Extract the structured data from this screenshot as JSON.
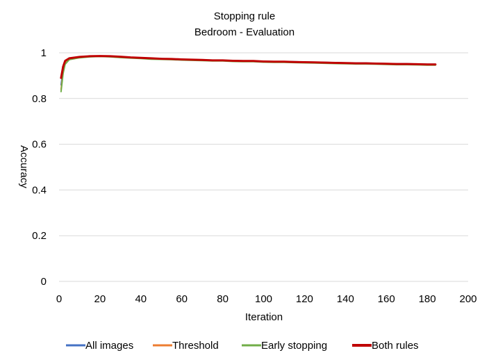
{
  "chart_data": {
    "type": "line",
    "title": "Stopping rule",
    "subtitle": "Bedroom - Evaluation",
    "xlabel": "Iteration",
    "ylabel": "Accuracy",
    "xlim": [
      0,
      200
    ],
    "ylim": [
      0,
      1
    ],
    "x_ticks": [
      "0",
      "20",
      "40",
      "60",
      "80",
      "100",
      "120",
      "140",
      "160",
      "180",
      "200"
    ],
    "y_ticks": [
      "0",
      "0.2",
      "0.4",
      "0.6",
      "0.8",
      "1"
    ],
    "grid": true,
    "legend_position": "bottom",
    "x": [
      1,
      2,
      3,
      5,
      10,
      15,
      20,
      25,
      30,
      35,
      40,
      45,
      50,
      55,
      60,
      65,
      70,
      75,
      80,
      85,
      90,
      95,
      100,
      105,
      110,
      115,
      120,
      125,
      130,
      135,
      140,
      145,
      150,
      155,
      160,
      165,
      170,
      175,
      180,
      184
    ],
    "series": [
      {
        "name": "All images",
        "color": "#4472C4",
        "values": [
          0.86,
          0.93,
          0.96,
          0.975,
          0.982,
          0.984,
          0.985,
          0.984,
          0.982,
          0.98,
          0.978,
          0.976,
          0.975,
          0.973,
          0.972,
          0.97,
          0.969,
          0.968,
          0.967,
          0.966,
          0.965,
          0.964,
          0.963,
          0.962,
          0.962,
          0.961,
          0.96,
          0.959,
          0.958,
          0.957,
          0.956,
          0.955,
          0.955,
          0.954,
          0.953,
          0.952,
          0.952,
          0.951,
          0.95,
          0.95
        ]
      },
      {
        "name": "Threshold",
        "color": "#ED7D31",
        "values": [
          0.84,
          0.92,
          0.955,
          0.972,
          0.98,
          0.983,
          0.985,
          0.983,
          0.98,
          0.979,
          0.977,
          0.975,
          0.973,
          0.972,
          0.97,
          0.969,
          0.968,
          0.966,
          0.966,
          0.964,
          0.963,
          0.963,
          0.961,
          0.96,
          0.96,
          0.959,
          0.958,
          0.957,
          0.956,
          0.955,
          0.954,
          0.953,
          0.953,
          0.952,
          0.951,
          0.95,
          0.95,
          0.949,
          0.948,
          0.947
        ]
      },
      {
        "name": "Early stopping",
        "color": "#70AD47",
        "values": [
          0.83,
          0.91,
          0.95,
          0.97,
          0.978,
          0.982,
          0.984,
          0.982,
          0.979,
          0.977,
          0.975,
          0.972,
          0.971,
          0.97,
          0.968,
          0.967,
          0.966,
          0.964,
          0.964,
          0.962,
          0.961,
          0.961,
          0.959,
          0.958,
          0.958,
          0.957,
          0.956,
          0.955,
          0.954,
          0.953,
          0.952,
          0.951,
          0.951,
          0.95,
          0.949,
          0.948,
          0.948,
          0.947,
          0.946,
          0.946
        ]
      },
      {
        "name": "Both rules",
        "color": "#C00000",
        "values": [
          0.89,
          0.94,
          0.965,
          0.976,
          0.982,
          0.985,
          0.986,
          0.985,
          0.983,
          0.98,
          0.978,
          0.976,
          0.974,
          0.973,
          0.971,
          0.97,
          0.969,
          0.967,
          0.967,
          0.965,
          0.964,
          0.964,
          0.962,
          0.961,
          0.961,
          0.96,
          0.959,
          0.958,
          0.957,
          0.956,
          0.955,
          0.954,
          0.954,
          0.953,
          0.952,
          0.951,
          0.951,
          0.95,
          0.949,
          0.949
        ]
      }
    ]
  }
}
